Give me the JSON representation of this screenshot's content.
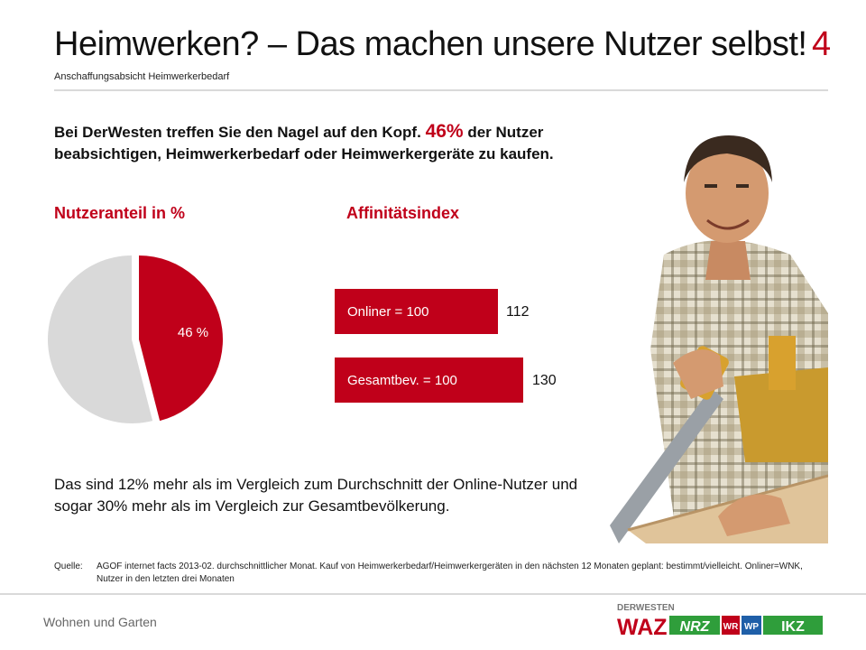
{
  "header": {
    "title": "Heimwerken? – Das machen unsere Nutzer selbst!",
    "page_number": "4",
    "subtitle": "Anschaffungsabsicht Heimwerkerbedarf"
  },
  "headline": {
    "part1": "Bei DerWesten treffen Sie den Nagel auf den Kopf.",
    "highlight": "46%",
    "part2": "der Nutzer beabsichtigen, Heimwerkerbedarf oder Heimwerkergeräte zu kaufen."
  },
  "pie": {
    "section_title": "Nutzeranteil in %",
    "value_percent": 46,
    "label": "46 %",
    "colors": {
      "highlight": "#c0001a",
      "rest": "#d9d9d9"
    }
  },
  "affinity": {
    "section_title": "Affinitätsindex",
    "bars": [
      {
        "label": "Onliner = 100",
        "value": "112",
        "index": 112
      },
      {
        "label": "Gesamtbev. = 100",
        "value": "130",
        "index": 130
      }
    ]
  },
  "paragraph": "Das sind 12% mehr als im Vergleich zum Durchschnitt der Online-Nutzer und sogar 30% mehr als im Vergleich zur Gesamtbevölkerung.",
  "source": {
    "label": "Quelle:",
    "text": "AGOF internet facts 2013-02. durchschnittlicher Monat. Kauf von Heimwerkerbedarf/Heimwerkergeräten in den nächsten 12 Monaten geplant: bestimmt/vielleicht. Onliner=WNK, Nutzer in den letzten drei Monaten"
  },
  "footer": {
    "section": "Wohnen und Garten"
  },
  "logo": {
    "brand": "DERWESTEN",
    "waz": "WAZ",
    "nrz": "NRZ",
    "wr": "WR",
    "wp": "WP",
    "ikz": "IKZ"
  },
  "colors": {
    "accent": "#c0001a",
    "rule": "#d9d9d9"
  }
}
